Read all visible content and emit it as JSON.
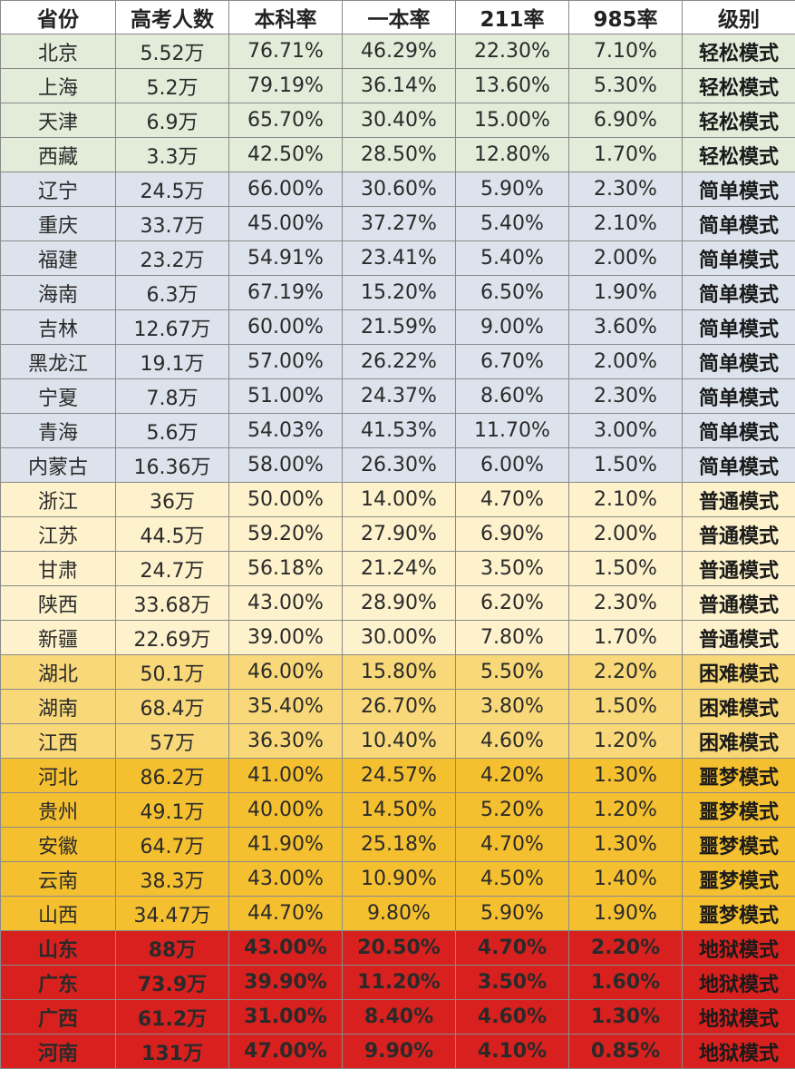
{
  "table": {
    "headers": [
      "省份",
      "高考人数",
      "本科率",
      "一本率",
      "211率",
      "985率",
      "级别"
    ],
    "rows": [
      [
        "北京",
        "5.52万",
        "76.71%",
        "46.29%",
        "22.30%",
        "7.10%",
        "轻松模式"
      ],
      [
        "上海",
        "5.2万",
        "79.19%",
        "36.14%",
        "13.60%",
        "5.30%",
        "轻松模式"
      ],
      [
        "天津",
        "6.9万",
        "65.70%",
        "30.40%",
        "15.00%",
        "6.90%",
        "轻松模式"
      ],
      [
        "西藏",
        "3.3万",
        "42.50%",
        "28.50%",
        "12.80%",
        "1.70%",
        "轻松模式"
      ],
      [
        "辽宁",
        "24.5万",
        "66.00%",
        "30.60%",
        "5.90%",
        "2.30%",
        "简单模式"
      ],
      [
        "重庆",
        "33.7万",
        "45.00%",
        "37.27%",
        "5.40%",
        "2.10%",
        "简单模式"
      ],
      [
        "福建",
        "23.2万",
        "54.91%",
        "23.41%",
        "5.40%",
        "2.00%",
        "简单模式"
      ],
      [
        "海南",
        "6.3万",
        "67.19%",
        "15.20%",
        "6.50%",
        "1.90%",
        "简单模式"
      ],
      [
        "吉林",
        "12.67万",
        "60.00%",
        "21.59%",
        "9.00%",
        "3.60%",
        "简单模式"
      ],
      [
        "黑龙江",
        "19.1万",
        "57.00%",
        "26.22%",
        "6.70%",
        "2.00%",
        "简单模式"
      ],
      [
        "宁夏",
        "7.8万",
        "51.00%",
        "24.37%",
        "8.60%",
        "2.30%",
        "简单模式"
      ],
      [
        "青海",
        "5.6万",
        "54.03%",
        "41.53%",
        "11.70%",
        "3.00%",
        "简单模式"
      ],
      [
        "内蒙古",
        "16.36万",
        "58.00%",
        "26.30%",
        "6.00%",
        "1.50%",
        "简单模式"
      ],
      [
        "浙江",
        "36万",
        "50.00%",
        "14.00%",
        "4.70%",
        "2.10%",
        "普通模式"
      ],
      [
        "江苏",
        "44.5万",
        "59.20%",
        "27.90%",
        "6.90%",
        "2.00%",
        "普通模式"
      ],
      [
        "甘肃",
        "24.7万",
        "56.18%",
        "21.24%",
        "3.50%",
        "1.50%",
        "普通模式"
      ],
      [
        "陕西",
        "33.68万",
        "43.00%",
        "28.90%",
        "6.20%",
        "2.30%",
        "普通模式"
      ],
      [
        "新疆",
        "22.69万",
        "39.00%",
        "30.00%",
        "7.80%",
        "1.70%",
        "普通模式"
      ],
      [
        "湖北",
        "50.1万",
        "46.00%",
        "15.80%",
        "5.50%",
        "2.20%",
        "困难模式"
      ],
      [
        "湖南",
        "68.4万",
        "35.40%",
        "26.70%",
        "3.80%",
        "1.50%",
        "困难模式"
      ],
      [
        "江西",
        "57万",
        "36.30%",
        "10.40%",
        "4.60%",
        "1.20%",
        "困难模式"
      ],
      [
        "河北",
        "86.2万",
        "41.00%",
        "24.57%",
        "4.20%",
        "1.30%",
        "噩梦模式"
      ],
      [
        "贵州",
        "49.1万",
        "40.00%",
        "14.50%",
        "5.20%",
        "1.20%",
        "噩梦模式"
      ],
      [
        "安徽",
        "64.7万",
        "41.90%",
        "25.18%",
        "4.70%",
        "1.30%",
        "噩梦模式"
      ],
      [
        "云南",
        "38.3万",
        "43.00%",
        "10.90%",
        "4.50%",
        "1.40%",
        "噩梦模式"
      ],
      [
        "山西",
        "34.47万",
        "44.70%",
        "9.80%",
        "5.90%",
        "1.90%",
        "噩梦模式"
      ],
      [
        "山东",
        "88万",
        "43.00%",
        "20.50%",
        "4.70%",
        "2.20%",
        "地狱模式"
      ],
      [
        "广东",
        "73.9万",
        "39.90%",
        "11.20%",
        "3.50%",
        "1.60%",
        "地狱模式"
      ],
      [
        "广西",
        "61.2万",
        "31.00%",
        "8.40%",
        "4.60%",
        "1.30%",
        "地狱模式"
      ],
      [
        "河南",
        "131万",
        "47.00%",
        "9.90%",
        "4.10%",
        "0.85%",
        "地狱模式"
      ]
    ]
  },
  "level_colors": {
    "轻松模式": "#e2ecd9",
    "简单模式": "#dde3ec",
    "普通模式": "#fdf2cc",
    "困难模式": "#f8d878",
    "噩梦模式": "#f5c030",
    "地狱模式": "#d8211e"
  }
}
